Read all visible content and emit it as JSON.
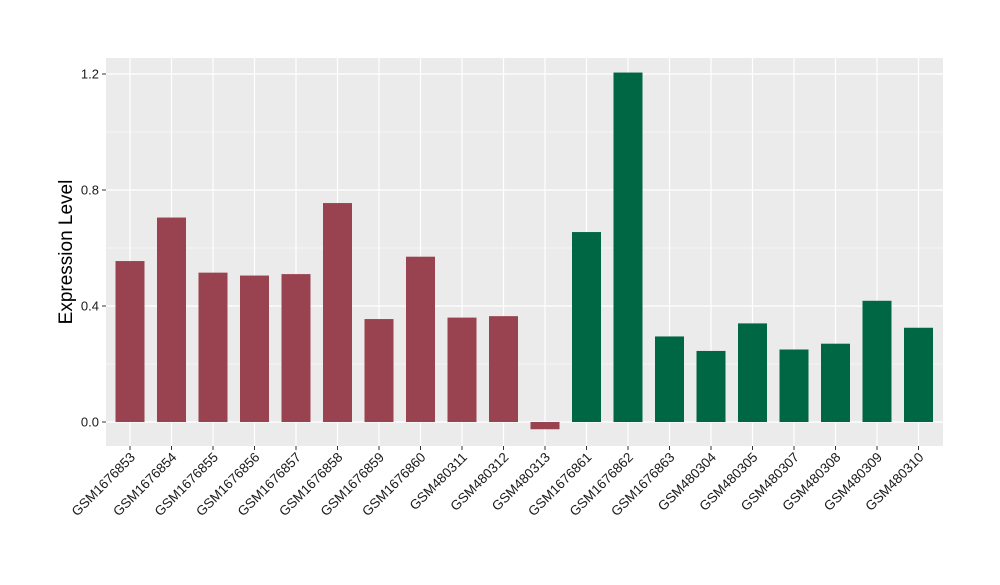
{
  "chart_data": {
    "type": "bar",
    "ylabel": "Expression Level",
    "xlabel": "",
    "ylim": [
      -0.08,
      1.24
    ],
    "yticks": [
      0.0,
      0.4,
      0.8,
      1.2
    ],
    "ytick_labels": [
      "0.0",
      "0.4",
      "0.8",
      "1.2"
    ],
    "grid": true,
    "categories": [
      "GSM1676853",
      "GSM1676854",
      "GSM1676855",
      "GSM1676856",
      "GSM1676857",
      "GSM1676858",
      "GSM1676859",
      "GSM1676860",
      "GSM480311",
      "GSM480312",
      "GSM480313",
      "GSM1676861",
      "GSM1676862",
      "GSM1676863",
      "GSM480304",
      "GSM480305",
      "GSM480307",
      "GSM480308",
      "GSM480309",
      "GSM480310"
    ],
    "values": [
      0.555,
      0.705,
      0.515,
      0.505,
      0.51,
      0.755,
      0.355,
      0.57,
      0.36,
      0.365,
      -0.025,
      0.655,
      1.205,
      0.295,
      0.245,
      0.34,
      0.25,
      0.27,
      0.418,
      0.325
    ],
    "group": [
      0,
      0,
      0,
      0,
      0,
      0,
      0,
      0,
      0,
      0,
      0,
      1,
      1,
      1,
      1,
      1,
      1,
      1,
      1,
      1
    ],
    "colors": [
      "#9a4350",
      "#006744"
    ],
    "panel_background": "#ebebeb",
    "grid_color": "#ffffff"
  }
}
